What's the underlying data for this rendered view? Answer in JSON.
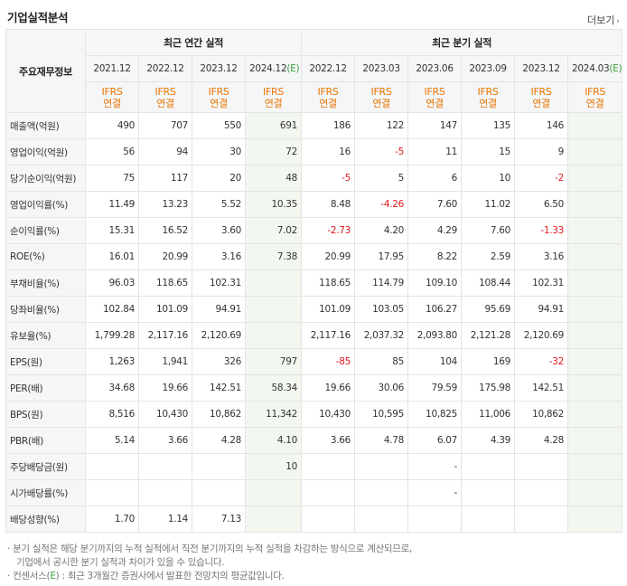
{
  "title": "기업실적분석",
  "more_label": "더보기",
  "header": {
    "row_label": "주요재무정보",
    "annual_group": "최근 연간 실적",
    "quarter_group": "최근 분기 실적",
    "annual_periods": [
      "2021.12",
      "2022.12",
      "2023.12",
      "2024.12"
    ],
    "annual_est_marker": "(E)",
    "quarter_periods": [
      "2022.12",
      "2023.03",
      "2023.06",
      "2023.09",
      "2023.12",
      "2024.03"
    ],
    "quarter_est_marker": "(E)",
    "ifrs": "IFRS",
    "basis": "연결"
  },
  "rows": [
    {
      "label": "매출액(억원)",
      "values": [
        "490",
        "707",
        "550",
        "691",
        "186",
        "122",
        "147",
        "135",
        "146",
        ""
      ],
      "neg": [],
      "group_start": true
    },
    {
      "label": "영업이익(억원)",
      "values": [
        "56",
        "94",
        "30",
        "72",
        "16",
        "-5",
        "11",
        "15",
        "9",
        ""
      ],
      "neg": [
        5
      ]
    },
    {
      "label": "당기순이익(억원)",
      "values": [
        "75",
        "117",
        "20",
        "48",
        "-5",
        "5",
        "6",
        "10",
        "-2",
        ""
      ],
      "neg": [
        4,
        8
      ]
    },
    {
      "label": "영업이익률(%)",
      "values": [
        "11.49",
        "13.23",
        "5.52",
        "10.35",
        "8.48",
        "-4.26",
        "7.60",
        "11.02",
        "6.50",
        ""
      ],
      "neg": [
        5
      ],
      "group_start": true
    },
    {
      "label": "순이익률(%)",
      "values": [
        "15.31",
        "16.52",
        "3.60",
        "7.02",
        "-2.73",
        "4.20",
        "4.29",
        "7.60",
        "-1.33",
        ""
      ],
      "neg": [
        4,
        8
      ]
    },
    {
      "label": "ROE(%)",
      "values": [
        "16.01",
        "20.99",
        "3.16",
        "7.38",
        "20.99",
        "17.95",
        "8.22",
        "2.59",
        "3.16",
        ""
      ],
      "neg": []
    },
    {
      "label": "부채비율(%)",
      "values": [
        "96.03",
        "118.65",
        "102.31",
        "",
        "118.65",
        "114.79",
        "109.10",
        "108.44",
        "102.31",
        ""
      ],
      "neg": [],
      "group_start": true
    },
    {
      "label": "당좌비율(%)",
      "values": [
        "102.84",
        "101.09",
        "94.91",
        "",
        "101.09",
        "103.05",
        "106.27",
        "95.69",
        "94.91",
        ""
      ],
      "neg": []
    },
    {
      "label": "유보율(%)",
      "values": [
        "1,799.28",
        "2,117.16",
        "2,120.69",
        "",
        "2,117.16",
        "2,037.32",
        "2,093.80",
        "2,121.28",
        "2,120.69",
        ""
      ],
      "neg": []
    },
    {
      "label": "EPS(원)",
      "values": [
        "1,263",
        "1,941",
        "326",
        "797",
        "-85",
        "85",
        "104",
        "169",
        "-32",
        ""
      ],
      "neg": [
        4,
        8
      ],
      "group_start": true
    },
    {
      "label": "PER(배)",
      "values": [
        "34.68",
        "19.66",
        "142.51",
        "58.34",
        "19.66",
        "30.06",
        "79.59",
        "175.98",
        "142.51",
        ""
      ],
      "neg": []
    },
    {
      "label": "BPS(원)",
      "values": [
        "8,516",
        "10,430",
        "10,862",
        "11,342",
        "10,430",
        "10,595",
        "10,825",
        "11,006",
        "10,862",
        ""
      ],
      "neg": []
    },
    {
      "label": "PBR(배)",
      "values": [
        "5.14",
        "3.66",
        "4.28",
        "4.10",
        "3.66",
        "4.78",
        "6.07",
        "4.39",
        "4.28",
        ""
      ],
      "neg": []
    },
    {
      "label": "주당배당금(원)",
      "values": [
        "",
        "",
        "",
        "10",
        "",
        "",
        "-",
        "",
        "",
        ""
      ],
      "neg": [],
      "group_start": true
    },
    {
      "label": "시가배당률(%)",
      "values": [
        "",
        "",
        "",
        "",
        "",
        "",
        "-",
        "",
        "",
        ""
      ],
      "neg": []
    },
    {
      "label": "배당성향(%)",
      "values": [
        "1.70",
        "1.14",
        "7.13",
        "",
        "",
        "",
        "",
        "",
        "",
        ""
      ],
      "neg": []
    }
  ],
  "notes": {
    "line1": "· 분기 실적은 해당 분기까지의 누적 실적에서 직전 분기까지의 누적 실적을 차감하는 방식으로 계산되므로,",
    "line2": "기업에서 공시한 분기 실적과 차이가 있을 수 있습니다.",
    "line3_pre": "· 컨센서스(",
    "line3_e": "E",
    "line3_post": ") : 최근 3개월간 증권사에서 발표한 전망치의 평균값입니다."
  }
}
